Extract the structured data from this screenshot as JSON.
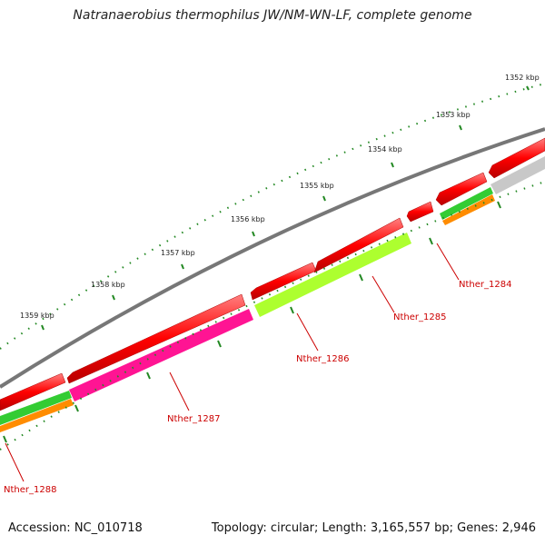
{
  "title": "Natranaerobius thermophilus JW/NM-WN-LF, complete genome",
  "footer": {
    "accession": "Accession: NC_010718",
    "topology": "Topology: circular; Length: 3,165,557 bp; Genes: 2,946"
  },
  "colors": {
    "backbone": "#777777",
    "cds": "#ff0000",
    "tick": "#228822",
    "label": "#cc0000"
  },
  "scale_labels": [
    "1352 kbp",
    "1353 kbp",
    "1354 kbp",
    "1355 kbp",
    "1356 kbp",
    "1357 kbp",
    "1358 kbp",
    "1359 kbp"
  ],
  "gene_labels": [
    "Nther_1284",
    "Nther_1285",
    "Nther_1286",
    "Nther_1287",
    "Nther_1288"
  ],
  "tracks": [
    {
      "name": "cds",
      "color": "#ff0000"
    },
    {
      "name": "cog-function",
      "colors": [
        "#ff1493",
        "#adff2f",
        "#cccccc"
      ]
    },
    {
      "name": "green",
      "color": "#33cc33"
    },
    {
      "name": "orange",
      "color": "#ff8c00"
    }
  ]
}
